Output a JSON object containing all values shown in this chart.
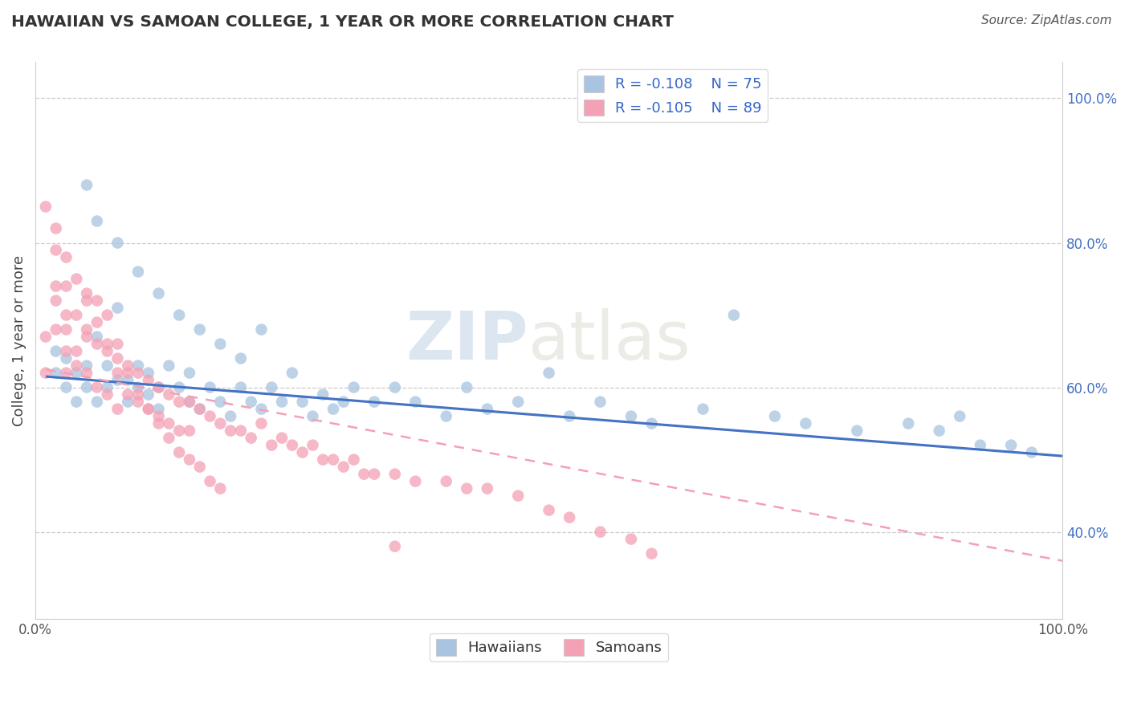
{
  "title": "HAWAIIAN VS SAMOAN COLLEGE, 1 YEAR OR MORE CORRELATION CHART",
  "source_text": "Source: ZipAtlas.com",
  "ylabel": "College, 1 year or more",
  "xlim": [
    0.0,
    1.0
  ],
  "ylim": [
    0.28,
    1.05
  ],
  "x_tick_labels": [
    "0.0%",
    "100.0%"
  ],
  "y_tick_positions": [
    0.4,
    0.6,
    0.8,
    1.0
  ],
  "y_tick_labels": [
    "40.0%",
    "60.0%",
    "80.0%",
    "100.0%"
  ],
  "legend_r1": "R = -0.108",
  "legend_n1": "N = 75",
  "legend_r2": "R = -0.105",
  "legend_n2": "N = 89",
  "legend_label1": "Hawaiians",
  "legend_label2": "Samoans",
  "color_hawaiian": "#a8c4e0",
  "color_samoan": "#f4a0b5",
  "line_color_hawaiian": "#4472c4",
  "line_color_samoan": "#f4a0b5",
  "watermark": "ZIPatlas",
  "hawaiian_x": [
    0.02,
    0.02,
    0.03,
    0.03,
    0.04,
    0.04,
    0.05,
    0.05,
    0.06,
    0.06,
    0.07,
    0.07,
    0.08,
    0.08,
    0.09,
    0.09,
    0.1,
    0.1,
    0.11,
    0.11,
    0.12,
    0.12,
    0.13,
    0.14,
    0.15,
    0.15,
    0.16,
    0.17,
    0.18,
    0.19,
    0.2,
    0.21,
    0.22,
    0.23,
    0.24,
    0.25,
    0.26,
    0.27,
    0.28,
    0.29,
    0.3,
    0.31,
    0.33,
    0.35,
    0.37,
    0.4,
    0.42,
    0.44,
    0.47,
    0.5,
    0.52,
    0.55,
    0.58,
    0.6,
    0.65,
    0.68,
    0.72,
    0.75,
    0.8,
    0.85,
    0.88,
    0.9,
    0.92,
    0.95,
    0.97,
    0.05,
    0.06,
    0.08,
    0.1,
    0.12,
    0.14,
    0.16,
    0.18,
    0.2,
    0.22
  ],
  "hawaiian_y": [
    0.62,
    0.65,
    0.6,
    0.64,
    0.58,
    0.62,
    0.6,
    0.63,
    0.58,
    0.67,
    0.6,
    0.63,
    0.61,
    0.71,
    0.58,
    0.61,
    0.63,
    0.6,
    0.59,
    0.62,
    0.6,
    0.57,
    0.63,
    0.6,
    0.62,
    0.58,
    0.57,
    0.6,
    0.58,
    0.56,
    0.6,
    0.58,
    0.57,
    0.6,
    0.58,
    0.62,
    0.58,
    0.56,
    0.59,
    0.57,
    0.58,
    0.6,
    0.58,
    0.6,
    0.58,
    0.56,
    0.6,
    0.57,
    0.58,
    0.62,
    0.56,
    0.58,
    0.56,
    0.55,
    0.57,
    0.7,
    0.56,
    0.55,
    0.54,
    0.55,
    0.54,
    0.56,
    0.52,
    0.52,
    0.51,
    0.88,
    0.83,
    0.8,
    0.76,
    0.73,
    0.7,
    0.68,
    0.66,
    0.64,
    0.68
  ],
  "samoan_x": [
    0.01,
    0.01,
    0.02,
    0.02,
    0.02,
    0.02,
    0.03,
    0.03,
    0.03,
    0.03,
    0.03,
    0.04,
    0.04,
    0.04,
    0.05,
    0.05,
    0.05,
    0.05,
    0.06,
    0.06,
    0.06,
    0.07,
    0.07,
    0.07,
    0.08,
    0.08,
    0.08,
    0.09,
    0.09,
    0.1,
    0.1,
    0.11,
    0.11,
    0.12,
    0.12,
    0.13,
    0.13,
    0.14,
    0.14,
    0.15,
    0.15,
    0.16,
    0.17,
    0.18,
    0.19,
    0.2,
    0.21,
    0.22,
    0.23,
    0.24,
    0.25,
    0.26,
    0.27,
    0.28,
    0.29,
    0.3,
    0.31,
    0.32,
    0.33,
    0.35,
    0.37,
    0.4,
    0.42,
    0.44,
    0.47,
    0.01,
    0.02,
    0.03,
    0.04,
    0.05,
    0.06,
    0.07,
    0.08,
    0.09,
    0.1,
    0.11,
    0.12,
    0.13,
    0.14,
    0.15,
    0.16,
    0.17,
    0.18,
    0.5,
    0.52,
    0.55,
    0.58,
    0.6,
    0.35
  ],
  "samoan_y": [
    0.62,
    0.67,
    0.72,
    0.68,
    0.74,
    0.79,
    0.65,
    0.7,
    0.62,
    0.68,
    0.74,
    0.65,
    0.7,
    0.63,
    0.68,
    0.73,
    0.62,
    0.67,
    0.72,
    0.66,
    0.6,
    0.7,
    0.65,
    0.59,
    0.66,
    0.62,
    0.57,
    0.63,
    0.59,
    0.62,
    0.58,
    0.61,
    0.57,
    0.6,
    0.56,
    0.59,
    0.55,
    0.58,
    0.54,
    0.58,
    0.54,
    0.57,
    0.56,
    0.55,
    0.54,
    0.54,
    0.53,
    0.55,
    0.52,
    0.53,
    0.52,
    0.51,
    0.52,
    0.5,
    0.5,
    0.49,
    0.5,
    0.48,
    0.48,
    0.48,
    0.47,
    0.47,
    0.46,
    0.46,
    0.45,
    0.85,
    0.82,
    0.78,
    0.75,
    0.72,
    0.69,
    0.66,
    0.64,
    0.62,
    0.59,
    0.57,
    0.55,
    0.53,
    0.51,
    0.5,
    0.49,
    0.47,
    0.46,
    0.43,
    0.42,
    0.4,
    0.39,
    0.37,
    0.38
  ],
  "hline_x0": 0.01,
  "hline_x1": 1.0,
  "hline_y0_h": 0.615,
  "hline_y1_h": 0.505,
  "hline_y0_s": 0.625,
  "hline_y1_s": 0.36
}
